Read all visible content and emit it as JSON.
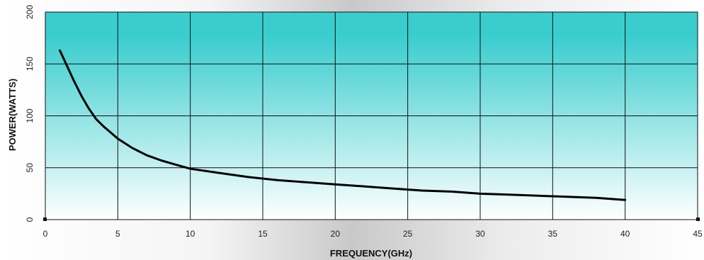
{
  "chart_data": {
    "type": "line",
    "title": "",
    "xlabel": "FREQUENCY(GHz)",
    "ylabel": "POWER(WATTS)",
    "xlim": [
      0,
      45
    ],
    "ylim": [
      0,
      200
    ],
    "xticks": [
      0,
      5,
      10,
      15,
      20,
      25,
      30,
      35,
      40,
      45
    ],
    "yticks": [
      0,
      50,
      100,
      150,
      200
    ],
    "grid": true,
    "colors": {
      "plot_top": "#3bcdce",
      "plot_bottom": "#ffffff",
      "grid": "#111111",
      "line": "#000000"
    },
    "series": [
      {
        "x": [
          1,
          1.5,
          2,
          2.5,
          3,
          3.5,
          4,
          4.5,
          5,
          6,
          7,
          8,
          9,
          10,
          12,
          14,
          16,
          18,
          20,
          22,
          24,
          26,
          28,
          30,
          32,
          34,
          36,
          38,
          40
        ],
        "y": [
          163,
          148,
          133,
          119,
          107,
          97,
          90,
          84,
          78,
          69,
          62,
          57,
          53,
          49,
          45,
          41,
          38,
          36,
          34,
          32,
          30,
          28,
          27,
          25,
          24,
          23,
          22,
          21,
          19
        ]
      }
    ]
  }
}
